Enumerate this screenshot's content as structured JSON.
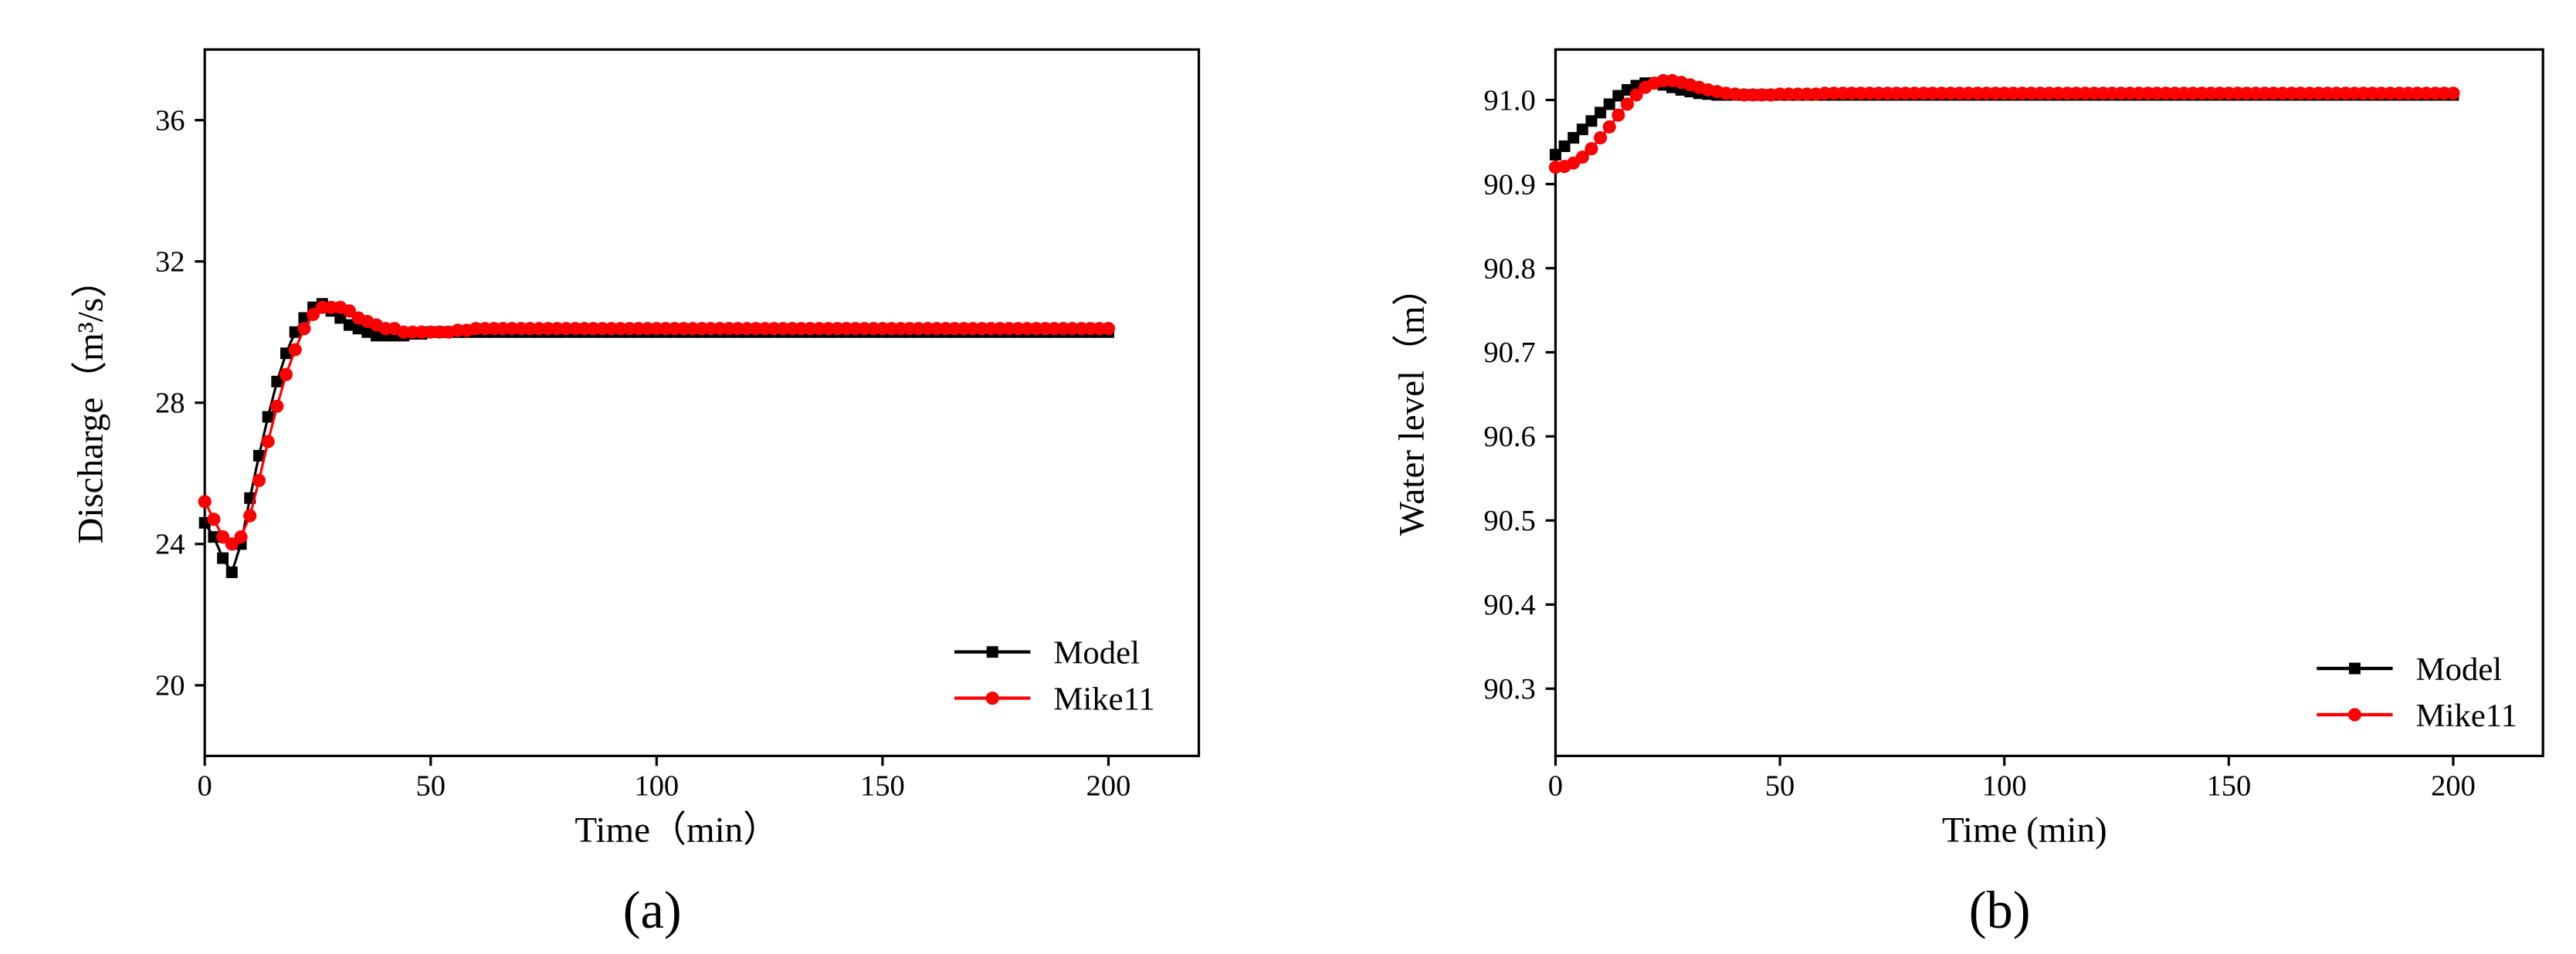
{
  "chart_data": [
    {
      "type": "line",
      "panel_label": "(a)",
      "x_label": "Time（min）",
      "y_label": "Discharge（m³/s）",
      "xlim": [
        0,
        220
      ],
      "xticks": [
        0,
        50,
        100,
        150,
        200
      ],
      "ylim": [
        18,
        38
      ],
      "yticks": [
        20,
        24,
        28,
        32,
        36
      ],
      "legend": "lower right",
      "x": [
        0,
        2,
        4,
        6,
        8,
        10,
        12,
        14,
        16,
        18,
        20,
        22,
        24,
        26,
        28,
        30,
        32,
        34,
        36,
        38,
        40,
        42,
        44,
        46,
        48,
        50,
        52,
        54,
        56,
        58,
        60,
        62,
        64,
        66,
        68,
        70,
        72,
        74,
        76,
        78,
        80,
        82,
        84,
        86,
        88,
        90,
        92,
        94,
        96,
        98,
        100,
        102,
        104,
        106,
        108,
        110,
        112,
        114,
        116,
        118,
        120,
        122,
        124,
        126,
        128,
        130,
        132,
        134,
        136,
        138,
        140,
        142,
        144,
        146,
        148,
        150,
        152,
        154,
        156,
        158,
        160,
        162,
        164,
        166,
        168,
        170,
        172,
        174,
        176,
        178,
        180,
        182,
        184,
        186,
        188,
        190,
        192,
        194,
        196,
        198,
        200
      ],
      "series": [
        {
          "name": "Model",
          "color": "#000000",
          "marker": "square",
          "values": [
            24.6,
            24.2,
            23.6,
            23.2,
            24.0,
            25.3,
            26.5,
            27.6,
            28.6,
            29.4,
            30.0,
            30.4,
            30.7,
            30.8,
            30.6,
            30.4,
            30.2,
            30.1,
            30.0,
            29.9,
            29.9,
            29.9,
            29.9,
            29.95,
            29.95,
            30,
            30,
            30,
            30,
            30,
            30,
            30,
            30,
            30,
            30,
            30,
            30,
            30,
            30,
            30,
            30,
            30,
            30,
            30,
            30,
            30,
            30,
            30,
            30,
            30,
            30,
            30,
            30,
            30,
            30,
            30,
            30,
            30,
            30,
            30,
            30,
            30,
            30,
            30,
            30,
            30,
            30,
            30,
            30,
            30,
            30,
            30,
            30,
            30,
            30,
            30,
            30,
            30,
            30,
            30,
            30,
            30,
            30,
            30,
            30,
            30,
            30,
            30,
            30,
            30,
            30,
            30,
            30,
            30,
            30,
            30,
            30,
            30,
            30,
            30,
            30
          ]
        },
        {
          "name": "Mike11",
          "color": "#ff0000",
          "marker": "circle",
          "values": [
            25.2,
            24.7,
            24.2,
            24.0,
            24.2,
            24.8,
            25.8,
            26.9,
            27.9,
            28.8,
            29.5,
            30.1,
            30.5,
            30.7,
            30.7,
            30.7,
            30.6,
            30.4,
            30.3,
            30.2,
            30.1,
            30.1,
            30.0,
            30.0,
            30.0,
            30.0,
            30.0,
            30.0,
            30.05,
            30.05,
            30.1,
            30.1,
            30.1,
            30.1,
            30.1,
            30.1,
            30.1,
            30.1,
            30.1,
            30.1,
            30.1,
            30.1,
            30.1,
            30.1,
            30.1,
            30.1,
            30.1,
            30.1,
            30.1,
            30.1,
            30.1,
            30.1,
            30.1,
            30.1,
            30.1,
            30.1,
            30.1,
            30.1,
            30.1,
            30.1,
            30.1,
            30.1,
            30.1,
            30.1,
            30.1,
            30.1,
            30.1,
            30.1,
            30.1,
            30.1,
            30.1,
            30.1,
            30.1,
            30.1,
            30.1,
            30.1,
            30.1,
            30.1,
            30.1,
            30.1,
            30.1,
            30.1,
            30.1,
            30.1,
            30.1,
            30.1,
            30.1,
            30.1,
            30.1,
            30.1,
            30.1,
            30.1,
            30.1,
            30.1,
            30.1,
            30.1,
            30.1,
            30.1,
            30.1,
            30.1,
            30.1
          ]
        }
      ]
    },
    {
      "type": "line",
      "panel_label": "(b)",
      "x_label": "Time (min)",
      "y_label": "Water level（m）",
      "xlim": [
        0,
        220
      ],
      "xticks": [
        0,
        50,
        100,
        150,
        200
      ],
      "ylim": [
        90.22,
        91.06
      ],
      "yticks": [
        90.3,
        90.4,
        90.5,
        90.6,
        90.7,
        90.8,
        90.9,
        {
          "value": 91,
          "label": "91.0"
        }
      ],
      "legend": "lower right",
      "x": [
        0,
        2,
        4,
        6,
        8,
        10,
        12,
        14,
        16,
        18,
        20,
        22,
        24,
        26,
        28,
        30,
        32,
        34,
        36,
        38,
        40,
        42,
        44,
        46,
        48,
        50,
        52,
        54,
        56,
        58,
        60,
        62,
        64,
        66,
        68,
        70,
        72,
        74,
        76,
        78,
        80,
        82,
        84,
        86,
        88,
        90,
        92,
        94,
        96,
        98,
        100,
        102,
        104,
        106,
        108,
        110,
        112,
        114,
        116,
        118,
        120,
        122,
        124,
        126,
        128,
        130,
        132,
        134,
        136,
        138,
        140,
        142,
        144,
        146,
        148,
        150,
        152,
        154,
        156,
        158,
        160,
        162,
        164,
        166,
        168,
        170,
        172,
        174,
        176,
        178,
        180,
        182,
        184,
        186,
        188,
        190,
        192,
        194,
        196,
        198,
        200
      ],
      "series": [
        {
          "name": "Model",
          "color": "#000000",
          "marker": "square",
          "values": [
            90.935,
            90.945,
            90.955,
            90.965,
            90.975,
            90.985,
            90.995,
            91.005,
            91.012,
            91.017,
            91.02,
            91.02,
            91.018,
            91.015,
            91.012,
            91.01,
            91.008,
            91.007,
            91.006,
            91.006,
            91.006,
            91.006,
            91.006,
            91.006,
            91.006,
            91.006,
            91.006,
            91.006,
            91.006,
            91.006,
            91.006,
            91.006,
            91.006,
            91.006,
            91.006,
            91.006,
            91.006,
            91.006,
            91.006,
            91.006,
            91.006,
            91.006,
            91.006,
            91.006,
            91.006,
            91.006,
            91.006,
            91.006,
            91.006,
            91.006,
            91.006,
            91.006,
            91.006,
            91.006,
            91.006,
            91.006,
            91.006,
            91.006,
            91.006,
            91.006,
            91.006,
            91.006,
            91.006,
            91.006,
            91.006,
            91.006,
            91.006,
            91.006,
            91.006,
            91.006,
            91.006,
            91.006,
            91.006,
            91.006,
            91.006,
            91.006,
            91.006,
            91.006,
            91.006,
            91.006,
            91.006,
            91.006,
            91.006,
            91.006,
            91.006,
            91.006,
            91.006,
            91.006,
            91.006,
            91.006,
            91.006,
            91.006,
            91.006,
            91.006,
            91.006,
            91.006,
            91.006,
            91.006,
            91.006,
            91.006,
            91.006
          ]
        },
        {
          "name": "Mike11",
          "color": "#ff0000",
          "marker": "circle",
          "values": [
            90.92,
            90.921,
            90.925,
            90.932,
            90.942,
            90.955,
            90.968,
            90.982,
            90.995,
            91.006,
            91.015,
            91.02,
            91.023,
            91.023,
            91.021,
            91.018,
            91.015,
            91.012,
            91.01,
            91.008,
            91.007,
            91.006,
            91.006,
            91.006,
            91.006,
            91.007,
            91.007,
            91.007,
            91.007,
            91.007,
            91.008,
            91.008,
            91.008,
            91.008,
            91.008,
            91.008,
            91.008,
            91.008,
            91.008,
            91.008,
            91.008,
            91.008,
            91.008,
            91.008,
            91.008,
            91.008,
            91.008,
            91.008,
            91.008,
            91.008,
            91.008,
            91.008,
            91.008,
            91.008,
            91.008,
            91.008,
            91.008,
            91.008,
            91.008,
            91.008,
            91.008,
            91.008,
            91.008,
            91.008,
            91.008,
            91.008,
            91.008,
            91.008,
            91.008,
            91.008,
            91.008,
            91.008,
            91.008,
            91.008,
            91.008,
            91.008,
            91.008,
            91.008,
            91.008,
            91.008,
            91.008,
            91.008,
            91.008,
            91.008,
            91.008,
            91.008,
            91.008,
            91.008,
            91.008,
            91.008,
            91.008,
            91.008,
            91.008,
            91.008,
            91.008,
            91.008,
            91.008,
            91.008,
            91.008,
            91.008,
            91.008
          ]
        }
      ]
    }
  ]
}
